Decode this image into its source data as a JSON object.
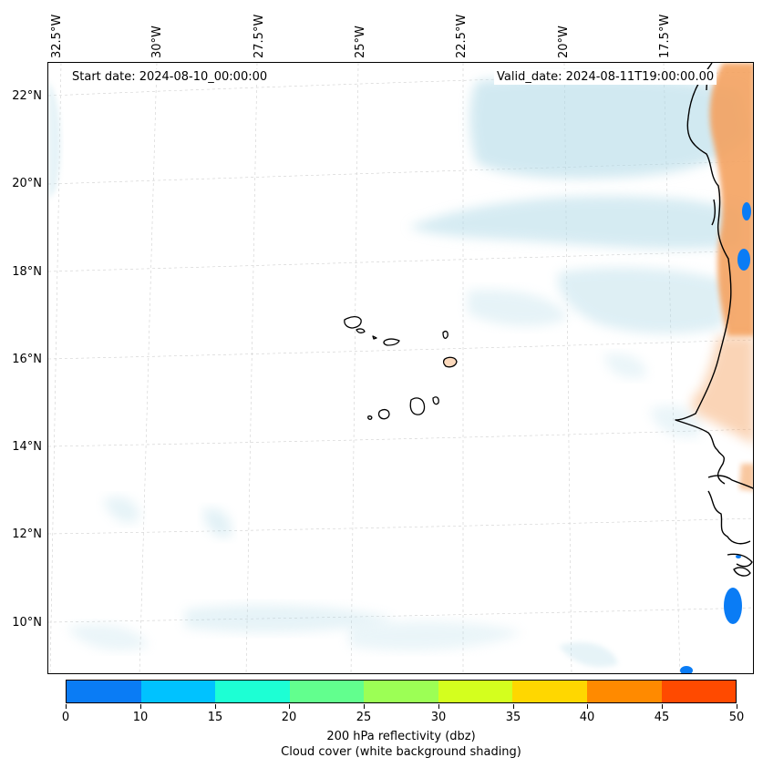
{
  "header": {
    "start_date": "Start date: 2024-08-10_00:00:00",
    "valid_date": "Valid_date: 2024-08-11T19:00:00.00"
  },
  "map": {
    "longitude_labels": [
      "32.5°W",
      "30°W",
      "27.5°W",
      "25°W",
      "22.5°W",
      "20°W",
      "17.5°W"
    ],
    "latitude_labels": [
      "22°N",
      "20°N",
      "18°N",
      "16°N",
      "14°N",
      "12°N",
      "10°N"
    ],
    "colors": {
      "land_reflectivity": "#f4a261",
      "cloud_shading": "#add8e6",
      "coastline": "#000000",
      "graticule": "#cccccc",
      "low_reflectivity": "#0a7cf5"
    }
  },
  "colorbar": {
    "tick_labels": [
      "0",
      "10",
      "15",
      "20",
      "25",
      "30",
      "35",
      "40",
      "45",
      "50"
    ],
    "colors": [
      "#0a7cf5",
      "#00c2ff",
      "#1dffd4",
      "#62ff8e",
      "#9cff55",
      "#d4ff1e",
      "#ffd700",
      "#ff8a00",
      "#ff4a00"
    ],
    "label_line1": "200 hPa reflectivity (dbz)",
    "label_line2": "Cloud cover (white background shading)"
  }
}
